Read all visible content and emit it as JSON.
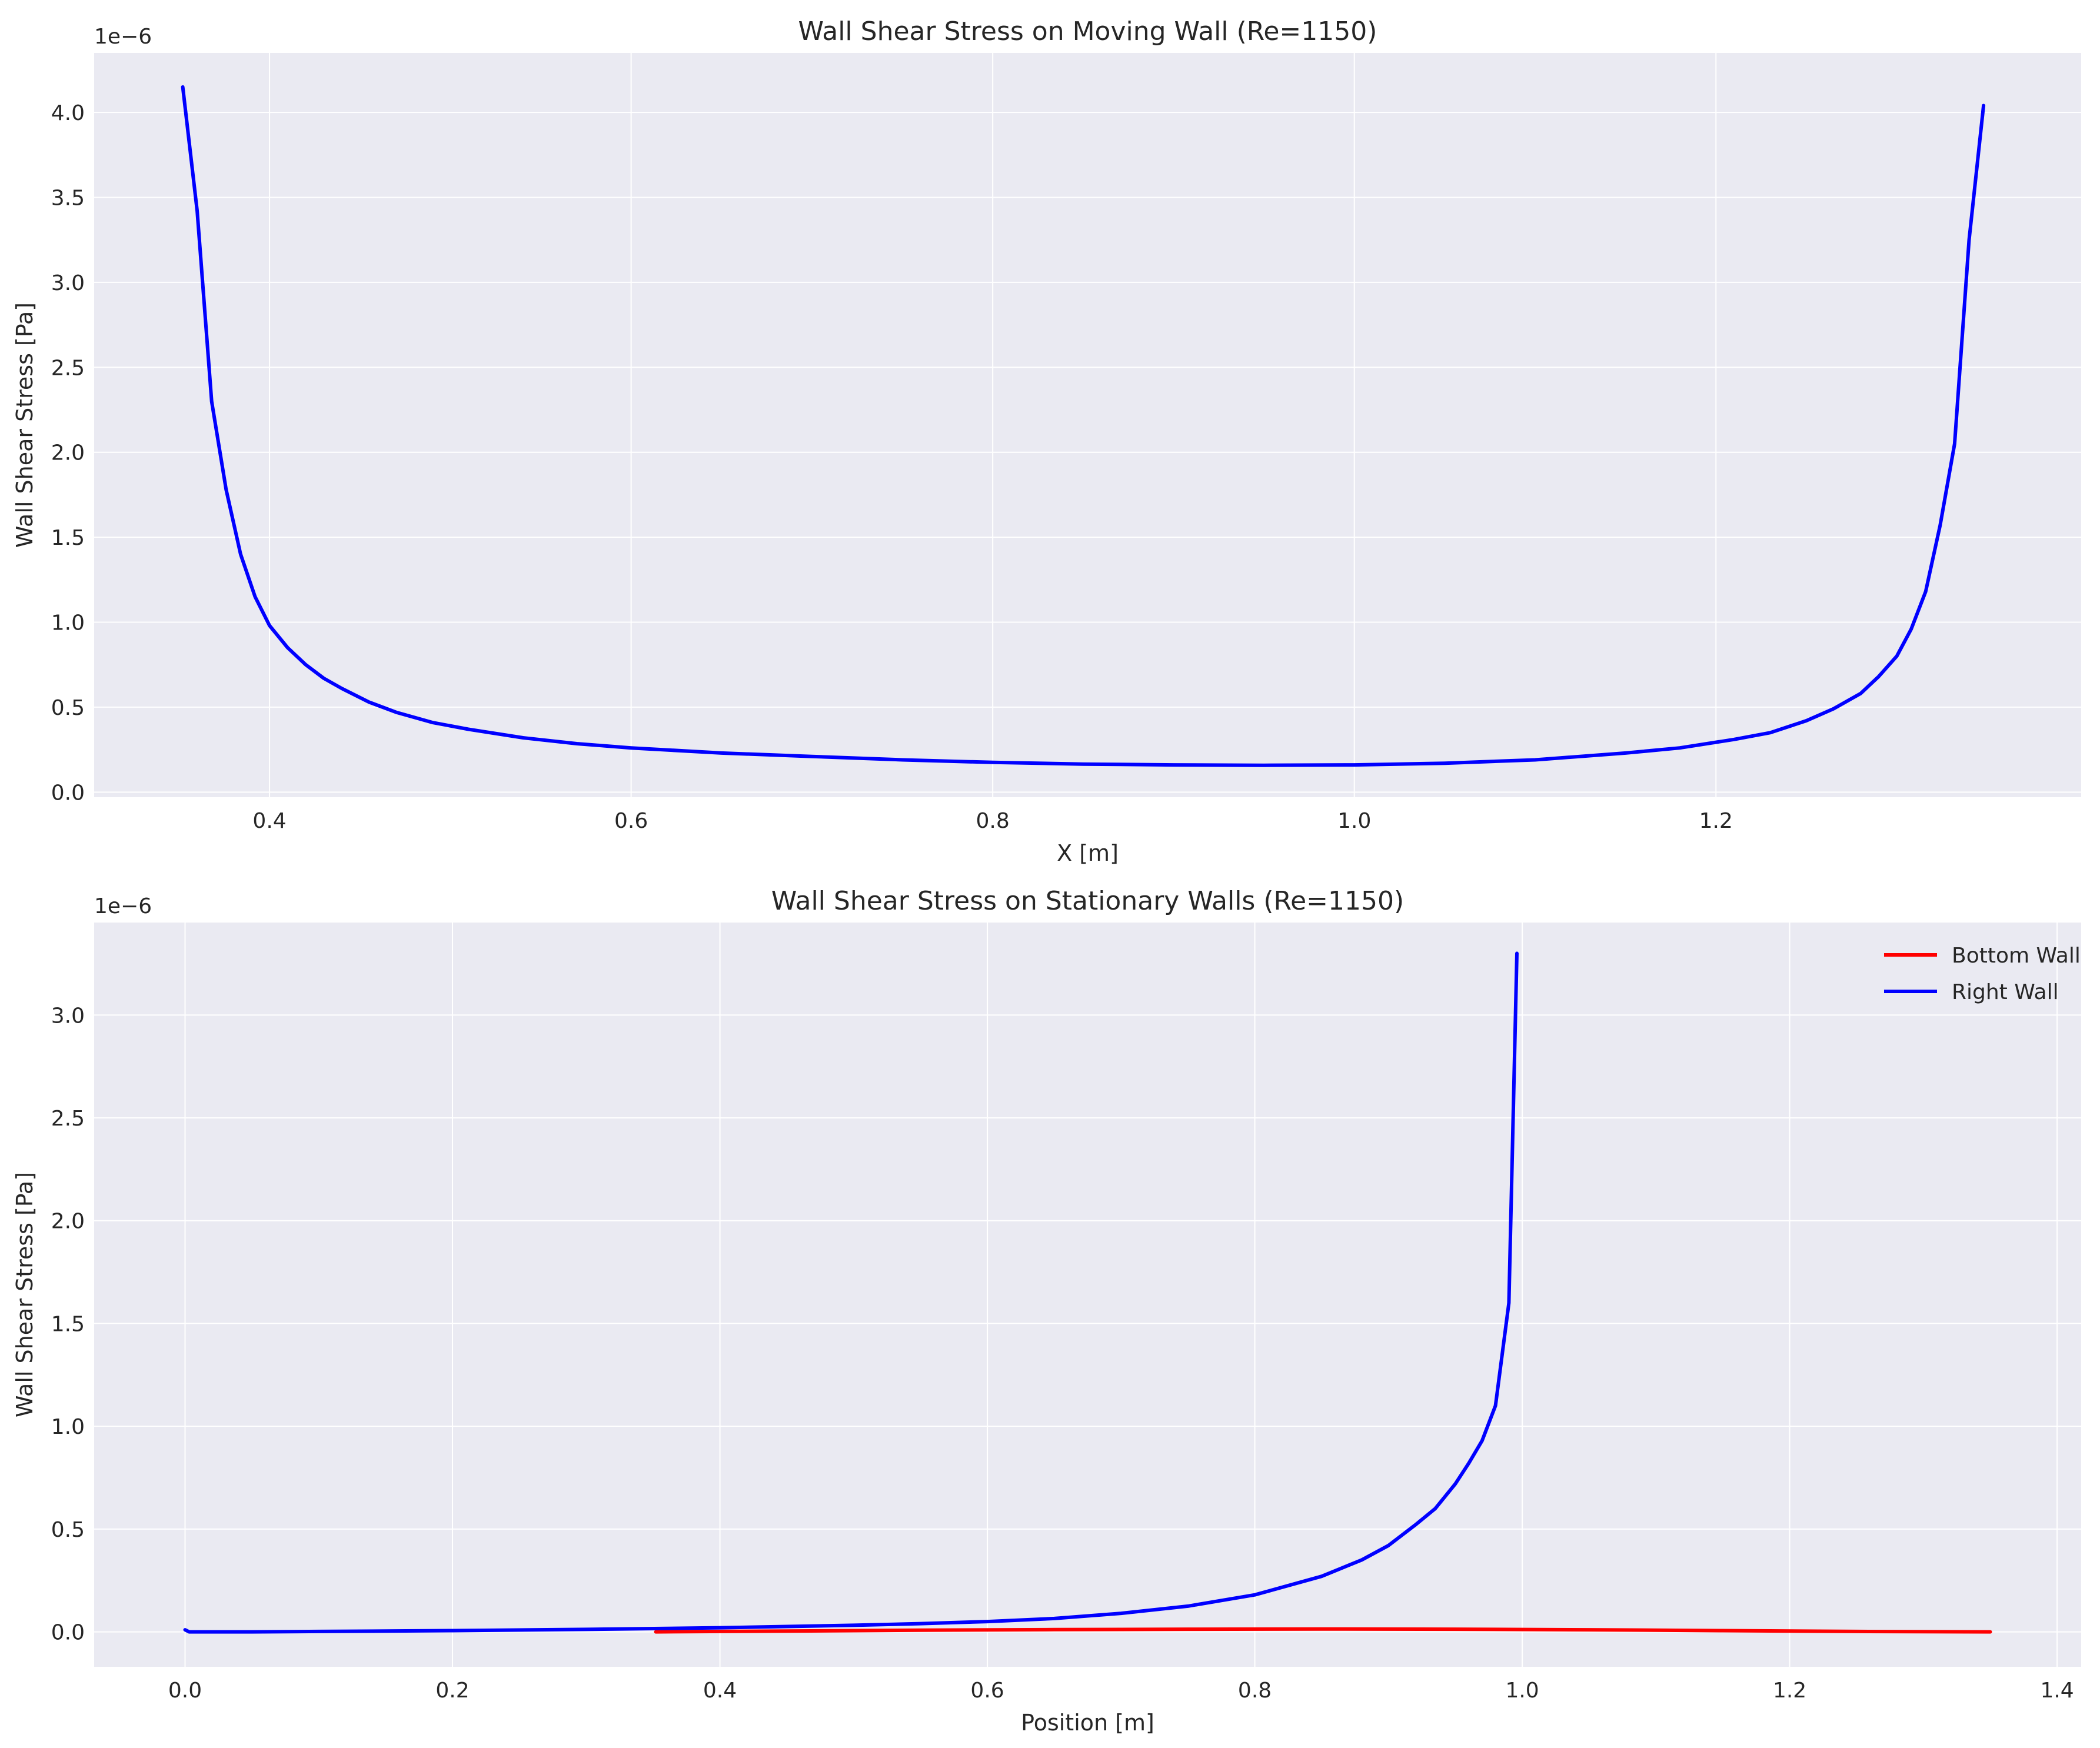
{
  "chart_data": [
    {
      "type": "line",
      "title": "Wall Shear Stress on Moving Wall (Re=1150)",
      "xlabel": "X [m]",
      "ylabel": "Wall Shear Stress [Pa]",
      "offset_text": "1e−6",
      "xlim": [
        0.303,
        1.402
      ],
      "ylim": [
        -0.03,
        4.35
      ],
      "xticks": [
        0.4,
        0.6,
        0.8,
        1.0,
        1.2
      ],
      "xtick_labels": [
        "0.4",
        "0.6",
        "0.8",
        "1.0",
        "1.2"
      ],
      "yticks": [
        0,
        0.5,
        1.0,
        1.5,
        2.0,
        2.5,
        3.0,
        3.5,
        4.0
      ],
      "ytick_labels": [
        "0.0",
        "0.5",
        "1.0",
        "1.5",
        "2.0",
        "2.5",
        "3.0",
        "3.5",
        "4.0"
      ],
      "grid": true,
      "legend": false,
      "series": [
        {
          "color": "#0000ff",
          "x": [
            0.352,
            0.36,
            0.368,
            0.376,
            0.384,
            0.392,
            0.4,
            0.41,
            0.42,
            0.43,
            0.44,
            0.455,
            0.47,
            0.49,
            0.51,
            0.54,
            0.57,
            0.6,
            0.65,
            0.7,
            0.75,
            0.8,
            0.85,
            0.9,
            0.95,
            1.0,
            1.05,
            1.1,
            1.15,
            1.18,
            1.21,
            1.23,
            1.25,
            1.265,
            1.28,
            1.29,
            1.3,
            1.308,
            1.316,
            1.324,
            1.332,
            1.34,
            1.348
          ],
          "y": [
            4.15,
            3.42,
            2.3,
            1.78,
            1.4,
            1.15,
            0.98,
            0.85,
            0.75,
            0.67,
            0.61,
            0.53,
            0.47,
            0.41,
            0.37,
            0.32,
            0.285,
            0.26,
            0.23,
            0.21,
            0.19,
            0.175,
            0.165,
            0.16,
            0.158,
            0.16,
            0.17,
            0.19,
            0.23,
            0.26,
            0.31,
            0.35,
            0.42,
            0.49,
            0.58,
            0.68,
            0.8,
            0.96,
            1.18,
            1.57,
            2.05,
            3.25,
            4.04
          ]
        }
      ]
    },
    {
      "type": "line",
      "title": "Wall Shear Stress on Stationary Walls (Re=1150)",
      "xlabel": "Position [m]",
      "ylabel": "Wall Shear Stress [Pa]",
      "offset_text": "1e−6",
      "xlim": [
        -0.068,
        1.418
      ],
      "ylim": [
        -0.17,
        3.45
      ],
      "xticks": [
        0.0,
        0.2,
        0.4,
        0.6,
        0.8,
        1.0,
        1.2,
        1.4
      ],
      "xtick_labels": [
        "0.0",
        "0.2",
        "0.4",
        "0.6",
        "0.8",
        "1.0",
        "1.2",
        "1.4"
      ],
      "yticks": [
        0,
        0.5,
        1.0,
        1.5,
        2.0,
        2.5,
        3.0
      ],
      "ytick_labels": [
        "0.0",
        "0.5",
        "1.0",
        "1.5",
        "2.0",
        "2.5",
        "3.0"
      ],
      "grid": true,
      "legend": "top-right",
      "series": [
        {
          "name": "Bottom Wall",
          "color": "#ff0000",
          "x": [
            0.352,
            0.45,
            0.55,
            0.65,
            0.75,
            0.85,
            0.95,
            1.05,
            1.15,
            1.25,
            1.35
          ],
          "y": [
            0.0,
            0.004,
            0.008,
            0.011,
            0.013,
            0.014,
            0.013,
            0.01,
            0.006,
            0.002,
            0.0
          ]
        },
        {
          "name": "Right Wall",
          "color": "#0000ff",
          "x": [
            0.0,
            0.003,
            0.05,
            0.1,
            0.2,
            0.3,
            0.4,
            0.5,
            0.55,
            0.6,
            0.65,
            0.7,
            0.75,
            0.8,
            0.85,
            0.88,
            0.9,
            0.92,
            0.935,
            0.95,
            0.96,
            0.97,
            0.98,
            0.99,
            0.996
          ],
          "y": [
            0.01,
            0.0,
            0.0,
            0.002,
            0.006,
            0.012,
            0.02,
            0.032,
            0.04,
            0.05,
            0.065,
            0.09,
            0.125,
            0.18,
            0.27,
            0.35,
            0.42,
            0.52,
            0.6,
            0.72,
            0.82,
            0.93,
            1.1,
            1.6,
            3.3
          ]
        }
      ]
    }
  ]
}
